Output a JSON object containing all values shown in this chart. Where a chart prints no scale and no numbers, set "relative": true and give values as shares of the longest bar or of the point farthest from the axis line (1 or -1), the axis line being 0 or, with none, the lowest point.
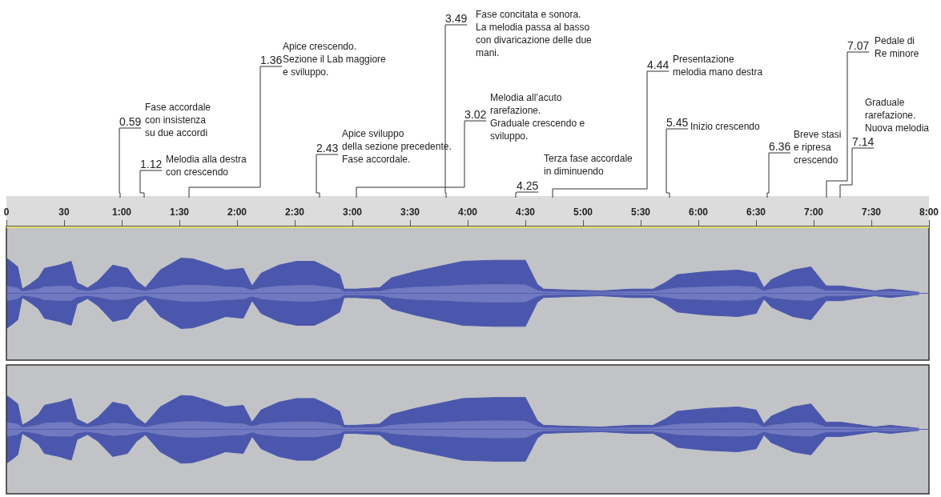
{
  "chart_data": [
    {
      "type": "area",
      "relative": true,
      "marker": "none",
      "xlim": [
        0,
        480
      ],
      "ref_lines": [
        {
          "axis": "y",
          "value": 0,
          "color": "#5560b4"
        }
      ],
      "xticks": [
        0,
        30,
        {
          "value": 60,
          "label": "1:00"
        },
        {
          "value": 90,
          "label": "1:30"
        },
        {
          "value": 120,
          "label": "2:00"
        },
        {
          "value": 150,
          "label": "2:30"
        },
        {
          "value": 180,
          "label": "3:00"
        },
        {
          "value": 210,
          "label": "3:30"
        },
        {
          "value": 240,
          "label": "4:00"
        },
        {
          "value": 270,
          "label": "4:30"
        },
        {
          "value": 300,
          "label": "5:00"
        },
        {
          "value": 330,
          "label": "5:30"
        },
        {
          "value": 360,
          "label": "6:00"
        },
        {
          "value": 390,
          "label": "6:30"
        },
        {
          "value": 420,
          "label": "7:00"
        },
        {
          "value": 450,
          "label": "7:30"
        },
        {
          "value": 480,
          "label": "8:00"
        }
      ],
      "x": [
        0,
        2.8,
        5.9,
        8.2,
        12.1,
        16.7,
        19.8,
        27.5,
        33.7,
        36.8,
        42.2,
        47.6,
        55.3,
        63,
        67.7,
        72.3,
        80,
        90.8,
        97,
        104.7,
        114,
        123.2,
        127.8,
        132.5,
        141.7,
        151,
        160.2,
        166.4,
        173.4,
        175.7,
        181.8,
        194.2,
        200.4,
        212.7,
        228.1,
        237.4,
        254.2,
        270,
        276.3,
        279.5,
        293.7,
        309.5,
        325.3,
        336.4,
        342.7,
        349,
        364.8,
        380.7,
        390.1,
        394.1,
        398,
        409.1,
        418.6,
        426.5,
        434.4,
        451.8,
        459.8,
        474.8
      ],
      "series": [
        {
          "color": "#4a57ac",
          "values": [
            1.0,
            0.89,
            0.75,
            0.12,
            0.25,
            0.44,
            0.71,
            0.8,
            0.91,
            0.3,
            0.15,
            0.35,
            0.8,
            0.71,
            0.35,
            0.16,
            0.66,
            1.0,
            0.98,
            0.85,
            0.66,
            0.71,
            0.21,
            0.57,
            0.8,
            0.91,
            0.91,
            0.75,
            0.53,
            0.12,
            0.12,
            0.16,
            0.44,
            0.62,
            0.8,
            0.91,
            0.94,
            0.94,
            0.25,
            0.12,
            0.09,
            0.07,
            0.12,
            0.12,
            0.3,
            0.53,
            0.62,
            0.66,
            0.57,
            0.16,
            0.39,
            0.66,
            0.75,
            0.21,
            0.21,
            0.07,
            0.12,
            0.03
          ]
        },
        {
          "color": "#4a57ac",
          "values": [
            -1.0,
            -0.89,
            -0.75,
            -0.12,
            -0.25,
            -0.44,
            -0.71,
            -0.8,
            -0.91,
            -0.3,
            -0.15,
            -0.35,
            -0.8,
            -0.71,
            -0.35,
            -0.16,
            -0.66,
            -1.0,
            -0.98,
            -0.85,
            -0.66,
            -0.71,
            -0.21,
            -0.57,
            -0.8,
            -0.91,
            -0.91,
            -0.75,
            -0.53,
            -0.12,
            -0.12,
            -0.16,
            -0.44,
            -0.62,
            -0.8,
            -0.91,
            -0.94,
            -0.94,
            -0.25,
            -0.12,
            -0.09,
            -0.07,
            -0.12,
            -0.12,
            -0.3,
            -0.53,
            -0.62,
            -0.66,
            -0.57,
            -0.16,
            -0.39,
            -0.66,
            -0.75,
            -0.21,
            -0.21,
            -0.07,
            -0.12,
            -0.03
          ]
        },
        {
          "color": "#7179c0",
          "values": [
            0.2,
            0.18,
            0.15,
            0.05,
            0.08,
            0.12,
            0.18,
            0.2,
            0.2,
            0.1,
            0.06,
            0.1,
            0.18,
            0.16,
            0.1,
            0.06,
            0.15,
            0.22,
            0.23,
            0.22,
            0.18,
            0.16,
            0.08,
            0.15,
            0.2,
            0.22,
            0.22,
            0.18,
            0.12,
            0.04,
            0.04,
            0.05,
            0.12,
            0.17,
            0.2,
            0.23,
            0.25,
            0.24,
            0.08,
            0.04,
            0.03,
            0.03,
            0.04,
            0.05,
            0.1,
            0.15,
            0.18,
            0.2,
            0.17,
            0.06,
            0.12,
            0.18,
            0.2,
            0.07,
            0.07,
            0.03,
            0.04,
            0.02
          ]
        },
        {
          "color": "#7179c0",
          "values": [
            -0.2,
            -0.18,
            -0.15,
            -0.05,
            -0.08,
            -0.12,
            -0.18,
            -0.2,
            -0.2,
            -0.1,
            -0.06,
            -0.1,
            -0.18,
            -0.16,
            -0.1,
            -0.06,
            -0.15,
            -0.22,
            -0.23,
            -0.22,
            -0.18,
            -0.16,
            -0.08,
            -0.15,
            -0.2,
            -0.22,
            -0.22,
            -0.18,
            -0.12,
            -0.04,
            -0.04,
            -0.05,
            -0.12,
            -0.17,
            -0.2,
            -0.23,
            -0.25,
            -0.24,
            -0.08,
            -0.04,
            -0.03,
            -0.03,
            -0.04,
            -0.05,
            -0.1,
            -0.15,
            -0.18,
            -0.2,
            -0.17,
            -0.06,
            -0.12,
            -0.18,
            -0.2,
            -0.07,
            -0.07,
            -0.03,
            -0.04,
            -0.02
          ]
        }
      ],
      "annotations": [
        "0.59\nFase accordale\ncon insistenza\nsu due accordi",
        "1.12\nMelodia alla destra\ncon crescendo",
        "1.36\nApice crescendo.\nSezione il Lab maggiore\ne sviluppo.",
        "2.43\nApice sviluppo\ndella sezione precedente.\nFase accordale.",
        "3.02\nMelodia all’acuto\nrarefazione.\nGraduale crescendo e\nsviluppo.",
        "3.49\nFase concitata e sonora.\nLa melodia passa al basso\ncon divaricazione delle due\nmani.",
        "4.25\nTerza fase accordale\nin diminuendo",
        "4.44\nPresentazione\nmelodia mano destra",
        "5.45\nInizio crescendo",
        "6.36\nBreve stasi\ne ripresa\ncrescendo",
        "7.07\nPedale di\nRe minore",
        "7.14\nGraduale\nrarefazione.\nNuova melodia"
      ]
    },
    {
      "type": "area",
      "relative": true,
      "marker": "none",
      "tick_labels": false,
      "xlim": [
        0,
        480
      ],
      "ref_lines": [
        {
          "axis": "y",
          "value": 0,
          "color": "#5560b4"
        }
      ],
      "x": [
        0,
        2.8,
        5.9,
        8.2,
        12.1,
        16.7,
        19.8,
        27.5,
        33.7,
        36.8,
        42.2,
        47.6,
        55.3,
        63,
        67.7,
        72.3,
        80,
        90.8,
        97,
        104.7,
        114,
        123.2,
        127.8,
        132.5,
        141.7,
        151,
        160.2,
        166.4,
        173.4,
        175.7,
        181.8,
        194.2,
        200.4,
        212.7,
        228.1,
        237.4,
        254.2,
        270,
        276.3,
        279.5,
        293.7,
        309.5,
        325.3,
        336.4,
        342.7,
        349,
        364.8,
        380.7,
        390.1,
        394.1,
        398,
        409.1,
        418.6,
        426.5,
        434.4,
        451.8,
        459.8,
        474.8
      ],
      "series": [
        {
          "color": "#4a57ac",
          "values": [
            1.0,
            0.89,
            0.75,
            0.12,
            0.25,
            0.44,
            0.71,
            0.8,
            0.91,
            0.3,
            0.15,
            0.35,
            0.8,
            0.71,
            0.35,
            0.16,
            0.66,
            1.0,
            0.98,
            0.85,
            0.66,
            0.71,
            0.21,
            0.57,
            0.8,
            0.91,
            0.91,
            0.75,
            0.53,
            0.12,
            0.12,
            0.16,
            0.44,
            0.62,
            0.8,
            0.91,
            0.94,
            0.94,
            0.25,
            0.12,
            0.09,
            0.07,
            0.12,
            0.12,
            0.3,
            0.53,
            0.62,
            0.66,
            0.57,
            0.16,
            0.39,
            0.66,
            0.75,
            0.21,
            0.21,
            0.07,
            0.12,
            0.03
          ]
        },
        {
          "color": "#4a57ac",
          "values": [
            -1.0,
            -0.89,
            -0.75,
            -0.12,
            -0.25,
            -0.44,
            -0.71,
            -0.8,
            -0.91,
            -0.3,
            -0.15,
            -0.35,
            -0.8,
            -0.71,
            -0.35,
            -0.16,
            -0.66,
            -1.0,
            -0.98,
            -0.85,
            -0.66,
            -0.71,
            -0.21,
            -0.57,
            -0.8,
            -0.91,
            -0.91,
            -0.75,
            -0.53,
            -0.12,
            -0.12,
            -0.16,
            -0.44,
            -0.62,
            -0.8,
            -0.91,
            -0.94,
            -0.94,
            -0.25,
            -0.12,
            -0.09,
            -0.07,
            -0.12,
            -0.12,
            -0.3,
            -0.53,
            -0.62,
            -0.66,
            -0.57,
            -0.16,
            -0.39,
            -0.66,
            -0.75,
            -0.21,
            -0.21,
            -0.07,
            -0.12,
            -0.03
          ]
        },
        {
          "color": "#7179c0",
          "values": [
            0.2,
            0.18,
            0.15,
            0.05,
            0.08,
            0.12,
            0.18,
            0.2,
            0.2,
            0.1,
            0.06,
            0.1,
            0.18,
            0.16,
            0.1,
            0.06,
            0.15,
            0.22,
            0.23,
            0.22,
            0.18,
            0.16,
            0.08,
            0.15,
            0.2,
            0.22,
            0.22,
            0.18,
            0.12,
            0.04,
            0.04,
            0.05,
            0.12,
            0.17,
            0.2,
            0.23,
            0.25,
            0.24,
            0.08,
            0.04,
            0.03,
            0.03,
            0.04,
            0.05,
            0.1,
            0.15,
            0.18,
            0.2,
            0.17,
            0.06,
            0.12,
            0.18,
            0.2,
            0.07,
            0.07,
            0.03,
            0.04,
            0.02
          ]
        },
        {
          "color": "#7179c0",
          "values": [
            -0.2,
            -0.18,
            -0.15,
            -0.05,
            -0.08,
            -0.12,
            -0.18,
            -0.2,
            -0.2,
            -0.1,
            -0.06,
            -0.1,
            -0.18,
            -0.16,
            -0.1,
            -0.06,
            -0.15,
            -0.22,
            -0.23,
            -0.22,
            -0.18,
            -0.16,
            -0.08,
            -0.15,
            -0.2,
            -0.22,
            -0.22,
            -0.18,
            -0.12,
            -0.04,
            -0.04,
            -0.05,
            -0.12,
            -0.17,
            -0.2,
            -0.23,
            -0.25,
            -0.24,
            -0.08,
            -0.04,
            -0.03,
            -0.03,
            -0.04,
            -0.05,
            -0.1,
            -0.15,
            -0.18,
            -0.2,
            -0.17,
            -0.06,
            -0.12,
            -0.18,
            -0.2,
            -0.07,
            -0.07,
            -0.03,
            -0.04,
            -0.02
          ]
        }
      ]
    }
  ]
}
